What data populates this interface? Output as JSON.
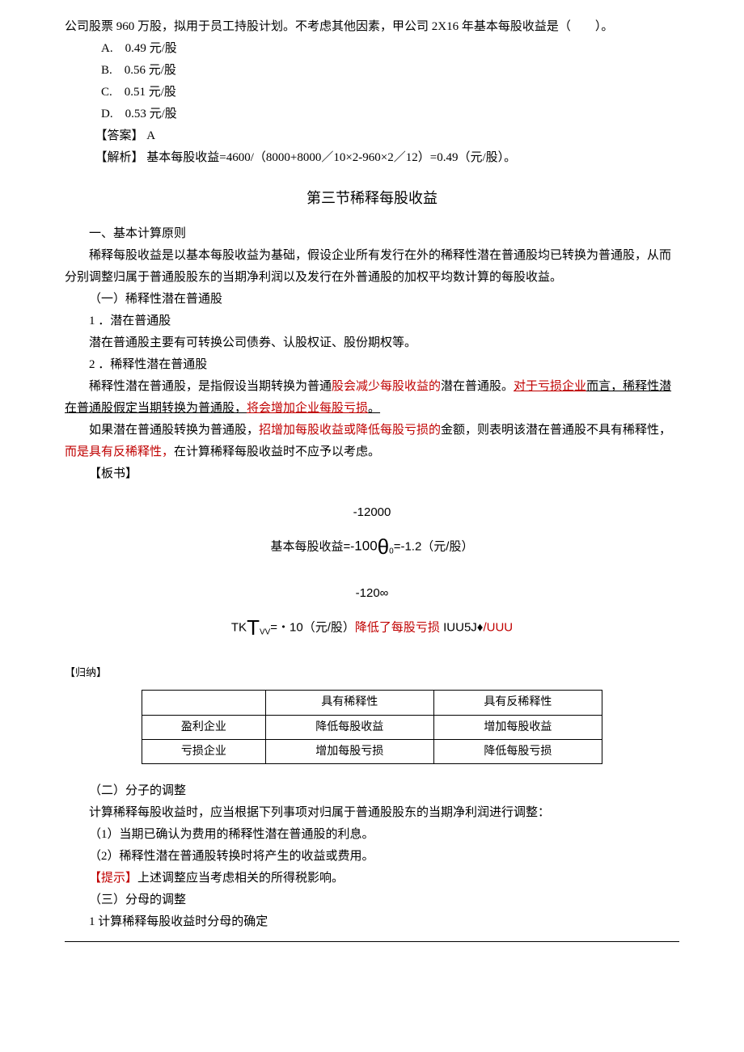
{
  "question": {
    "stem": "公司股票 960 万股，拟用于员工持股计划。不考虑其他因素，甲公司 2X16 年基本每股收益是（　　）。",
    "options": {
      "A": "A.　0.49 元/股",
      "B": "B.　0.56 元/股",
      "C": "C.　0.51 元/股",
      "D": "D.　0.53 元/股"
    },
    "answer_label": "【答案】",
    "answer_value": "A",
    "explain_label": "【解析】",
    "explain_text": "基本每股收益=4600/（8000+8000／10×2-960×2／12）=0.49（元/股）。"
  },
  "section": {
    "title": "第三节稀释每股收益",
    "h1": "一、基本计算原则",
    "p1": "稀释每股收益是以基本每股收益为基础，假设企业所有发行在外的稀释性潜在普通股均已转换为普通股，从而分别调整归属于普通股股东的当期净利润以及发行在外普通股的加权平均数计算的每股收益。",
    "s1": "（一）稀释性潜在普通股",
    "s1_1": "1 ．潜在普通股",
    "s1_1p": "潜在普通股主要有可转换公司债券、认股权证、股份期权等。",
    "s1_2": "2 ．稀释性潜在普通股",
    "s1_2p_a": "稀释性潜在普通股，是指假设当期转换为普通",
    "s1_2p_b": "股会减少每股收益的",
    "s1_2p_c": "潜在普通股。",
    "s1_2p_d": "对于亏损企业",
    "s1_2p_e": "而言，稀释性潜在普通股假定当期转换为普通股，",
    "s1_2p_f": "将会增加企业每股亏损",
    "s1_2p_g": "。",
    "s1_3a": "如果潜在普通股转换为普通股，",
    "s1_3b": "招增加每股收益或降低每股亏损的",
    "s1_3c": "金额，则表明该潜在普通股不具有稀释性，",
    "s1_3d": "而是具有反稀释性，",
    "s1_3e": "在计算稀释每股收益时不应予以考虑。",
    "board_label": "【板书】"
  },
  "formula": {
    "l1": "-12000",
    "l2a": "基本每股收益=-",
    "l2b": "100",
    "l2c": "θ",
    "l2d": "0",
    "l2e": "=-1.2（元/股）",
    "l3": "-120∞",
    "l4a": "TK",
    "l4b": "T",
    "l4c": "VV",
    "l4d": "=・10（元/股）",
    "l4e": "降低了每股亏损",
    "l4f": " IUU5J♦",
    "l4g": "/UUU"
  },
  "summarize": {
    "label": "【归纳】",
    "table": {
      "h1": "",
      "h2": "具有稀释性",
      "h3": "具有反稀释性",
      "r1c1": "盈利企业",
      "r1c2": "降低每股收益",
      "r1c3": "增加每股收益",
      "r2c1": "亏损企业",
      "r2c2": "增加每股亏损",
      "r2c3": "降低每股亏损"
    }
  },
  "tail": {
    "s2": "（二）分子的调整",
    "p2": "计算稀释每股收益时，应当根据下列事项对归属于普通股股东的当期净利润进行调整：",
    "p2_1": "（1）当期已确认为费用的稀释性潜在普通股的利息。",
    "p2_2": "（2）稀释性潜在普通股转换时将产生的收益或费用。",
    "hint_label": "【提示】",
    "hint_text": "上述调整应当考虑相关的所得税影响。",
    "s3": "（三）分母的调整",
    "p3": "1 计算稀释每股收益时分母的确定"
  },
  "style": {
    "red": "#c00000",
    "black": "#000000",
    "bg": "#ffffff"
  }
}
